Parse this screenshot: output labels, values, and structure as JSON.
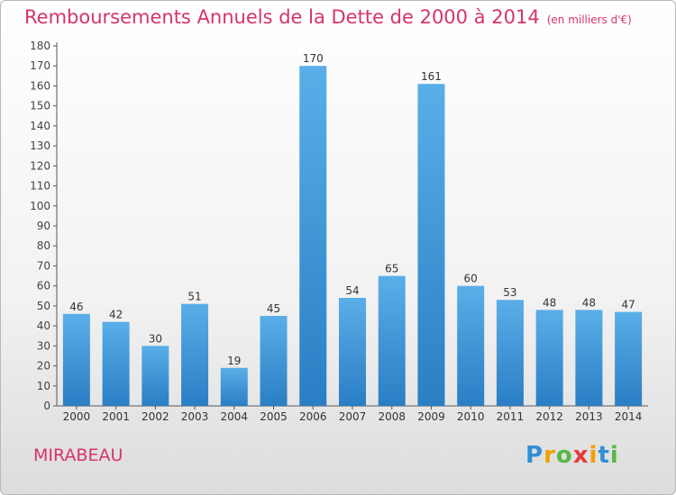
{
  "title": "Remboursements Annuels de la Dette de 2000 à 2014",
  "unit": "(en milliers d'€)",
  "city": "MIRABEAU",
  "logo": {
    "letters": [
      "P",
      "r",
      "o",
      "x",
      "i",
      "t",
      "i"
    ],
    "colors": [
      "#2f8fd6",
      "#f2a000",
      "#56b848",
      "#e23b3b",
      "#f2a000",
      "#2f8fd6",
      "#56b848"
    ]
  },
  "colors": {
    "bar_light": "#5aaee8",
    "bar_dark": "#2a7ec4",
    "title": "#d6336c"
  },
  "chart_data": {
    "type": "bar",
    "categories": [
      "2000",
      "2001",
      "2002",
      "2003",
      "2004",
      "2005",
      "2006",
      "2007",
      "2008",
      "2009",
      "2010",
      "2011",
      "2012",
      "2013",
      "2014"
    ],
    "values": [
      46,
      42,
      30,
      51,
      19,
      45,
      170,
      54,
      65,
      161,
      60,
      53,
      48,
      48,
      47
    ],
    "ylim": [
      0,
      180
    ],
    "ytick_step": 10,
    "grid": false,
    "data_labels": true
  }
}
